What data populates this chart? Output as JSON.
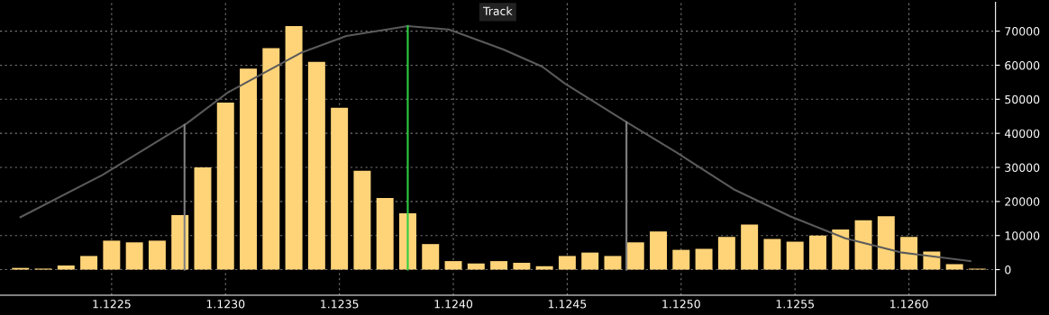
{
  "chart_data": {
    "type": "histogram",
    "bins": [
      1.12205,
      1.12215,
      1.12225,
      1.12235,
      1.12245,
      1.12255,
      1.12265,
      1.12275,
      1.12285,
      1.12295,
      1.12305,
      1.12315,
      1.12325,
      1.12335,
      1.12345,
      1.12355,
      1.12365,
      1.12375,
      1.12385,
      1.12395,
      1.12405,
      1.12415,
      1.12425,
      1.12435,
      1.12445,
      1.12455,
      1.12465,
      1.12475,
      1.12485,
      1.12495,
      1.12505,
      1.12515,
      1.12525,
      1.12535,
      1.12545,
      1.12555,
      1.12565,
      1.12575,
      1.12585,
      1.12595,
      1.12605,
      1.12615,
      1.12625,
      1.12635
    ],
    "series": [
      {
        "color": "#ffd479",
        "values": [
          500,
          300,
          1200,
          4000,
          8500,
          8000,
          8500,
          16000,
          30000,
          49000,
          59000,
          65000,
          71500,
          61000,
          47500,
          29000,
          21000,
          16500,
          7500,
          2500,
          1800,
          2500,
          2000,
          1000,
          4000,
          5000,
          4000,
          8000,
          11200,
          5800,
          6100,
          9600,
          13200,
          9000,
          8200,
          10000,
          11800,
          14500,
          15700,
          9600,
          5300,
          1600,
          300
        ]
      },
      {
        "type": "line",
        "color": "#5a5a5a",
        "x": [
          1.1221,
          1.12246,
          1.12283,
          1.12301,
          1.12333,
          1.12353,
          1.1238,
          1.12398,
          1.12422,
          1.12439,
          1.12449,
          1.12476,
          1.12498,
          1.12523,
          1.12548,
          1.12572,
          1.12597,
          1.12627
        ],
        "values": [
          15400,
          27800,
          42900,
          52000,
          63600,
          68600,
          71500,
          70500,
          64600,
          59600,
          54600,
          43300,
          34400,
          23600,
          15600,
          9200,
          5000,
          2500
        ]
      }
    ],
    "ref_lines": [
      {
        "axis": "x",
        "value": 1.12282,
        "color": "#808080"
      },
      {
        "axis": "x",
        "value": 1.12476,
        "color": "#808080"
      },
      {
        "axis": "x",
        "value": 1.1238,
        "color": "#2ecc40"
      }
    ],
    "annotations": [
      "Track"
    ],
    "xlim": [
      1.12201,
      1.12638
    ],
    "ylim": [
      -7500,
      78500
    ],
    "xticks": [
      1.1225,
      {
        "value": 1.123,
        "label": "1.1230"
      },
      1.1235,
      {
        "value": 1.124,
        "label": "1.1240"
      },
      1.1245,
      {
        "value": 1.125,
        "label": "1.1250"
      },
      1.1255,
      {
        "value": 1.126,
        "label": "1.1260"
      }
    ],
    "yticks": [
      0,
      10000,
      20000,
      30000,
      40000,
      50000,
      60000,
      70000
    ],
    "grid": true
  }
}
